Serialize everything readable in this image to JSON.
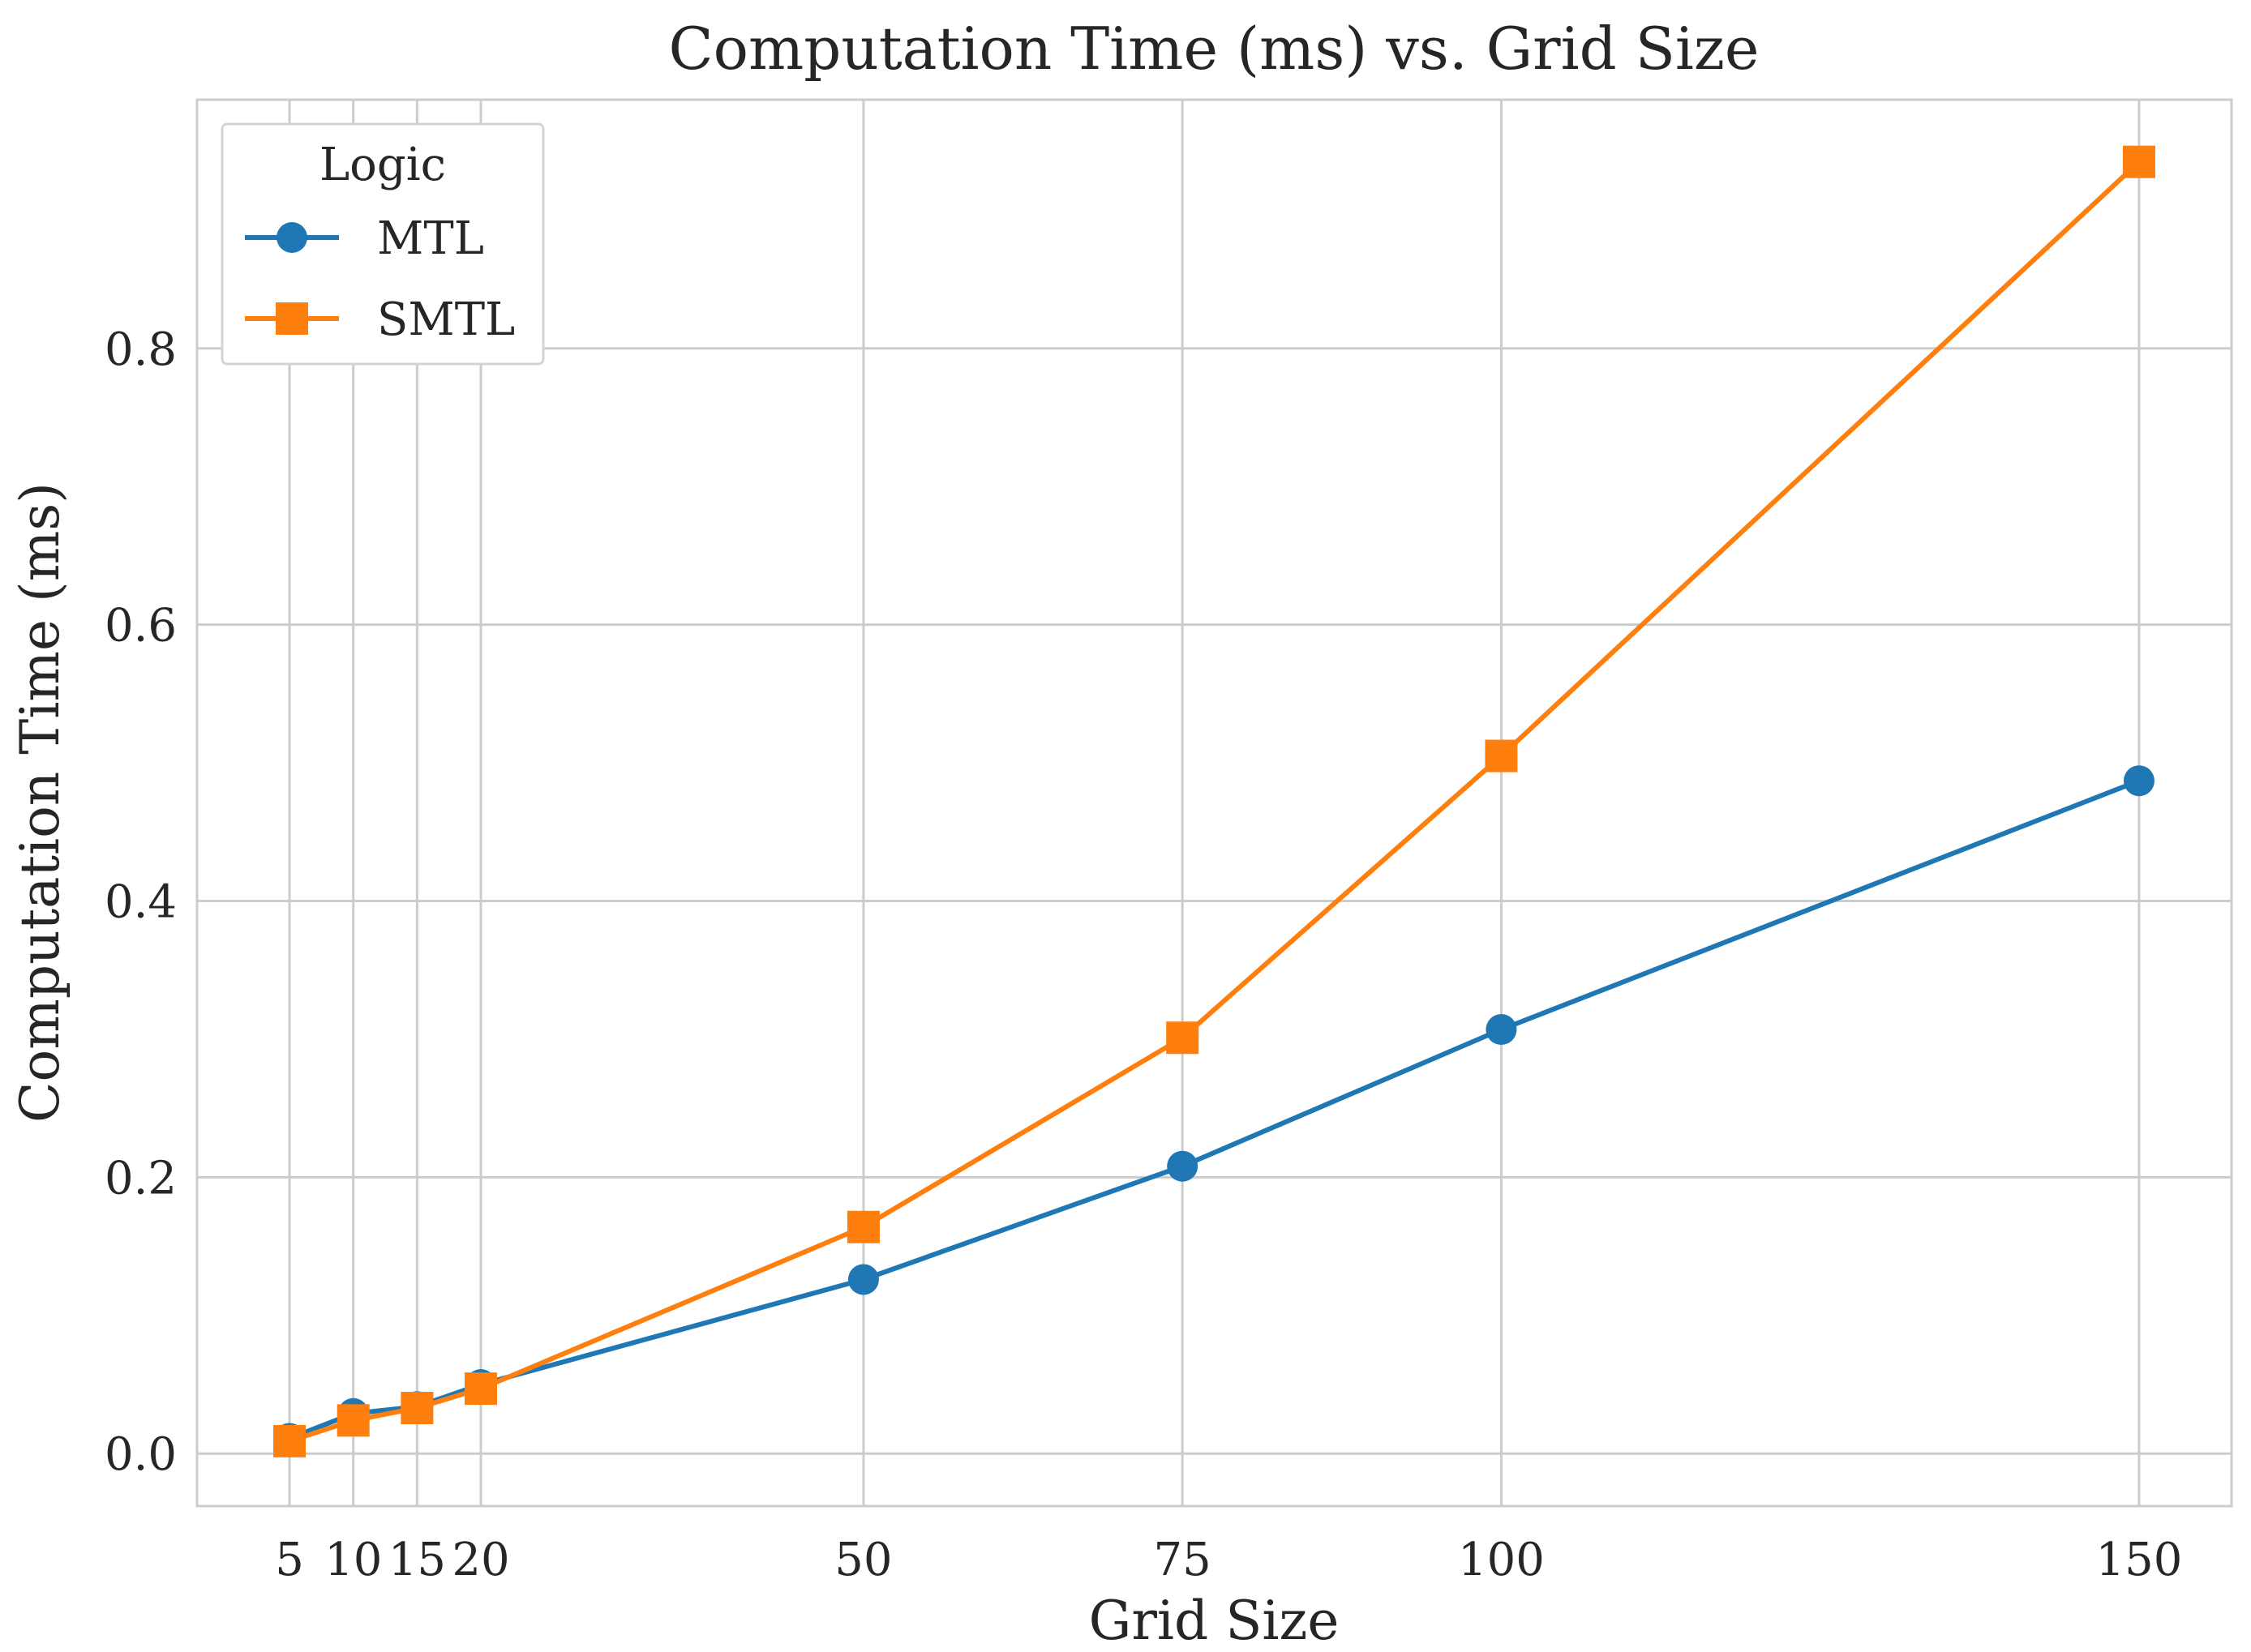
{
  "chart_data": {
    "type": "line",
    "title": "Computation Time (ms) vs. Grid Size",
    "xlabel": "Grid Size",
    "ylabel": "Computation Time (ms)",
    "x": [
      5,
      10,
      15,
      20,
      50,
      75,
      100,
      150
    ],
    "x_tick_labels": [
      "5",
      "10",
      "15",
      "20",
      "50",
      "75",
      "100",
      "150"
    ],
    "y_ticks": [
      0.0,
      0.2,
      0.4,
      0.6,
      0.8
    ],
    "y_tick_labels": [
      "0.0",
      "0.2",
      "0.4",
      "0.6",
      "0.8"
    ],
    "xlim": [
      -2.25,
      157.25
    ],
    "ylim": [
      -0.038,
      0.98
    ],
    "grid": true,
    "legend": {
      "title": "Logic",
      "placement": "top-left"
    },
    "series": [
      {
        "name": "MTL",
        "color": "#1f77b4",
        "marker": "circle",
        "values": [
          0.011,
          0.029,
          0.034,
          0.05,
          0.126,
          0.208,
          0.307,
          0.487
        ]
      },
      {
        "name": "SMTL",
        "color": "#ff7f0e",
        "marker": "square",
        "values": [
          0.009,
          0.024,
          0.033,
          0.047,
          0.164,
          0.301,
          0.505,
          0.935
        ]
      }
    ]
  }
}
